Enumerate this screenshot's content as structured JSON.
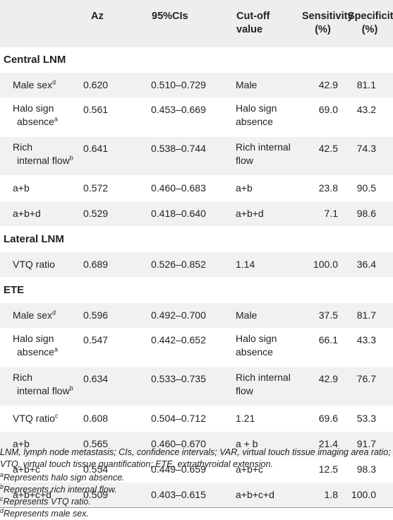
{
  "headers": {
    "variable": "",
    "az": "Az",
    "ci": "95%CIs",
    "cutoff_line1": "Cut-off",
    "cutoff_line2": "value",
    "sens_line1": "Sensitivity",
    "sens_line2": "(%)",
    "spec_line1": "Specificity",
    "spec_line2": "(%)"
  },
  "sections": [
    {
      "title": "Central LNM",
      "rows": [
        {
          "var1": "Male sex",
          "sup": "d",
          "var2": "",
          "az": "0.620",
          "ci": "0.510–0.729",
          "cut1": "Male",
          "cut2": "",
          "sens": "42.9",
          "spec": "81.1"
        },
        {
          "var1": "Halo sign",
          "sup": "a",
          "var2": "absence",
          "az": "0.561",
          "ci": "0.453–0.669",
          "cut1": "Halo sign",
          "cut2": "absence",
          "sens": "69.0",
          "spec": "43.2"
        },
        {
          "var1": "Rich",
          "sup": "b",
          "var2": "internal flow",
          "az": "0.641",
          "ci": "0.538–0.744",
          "cut1": "Rich internal",
          "cut2": "flow",
          "sens": "42.5",
          "spec": "74.3"
        },
        {
          "var1": "a+b",
          "sup": "",
          "var2": "",
          "az": "0.572",
          "ci": "0.460–0.683",
          "cut1": "a+b",
          "cut2": "",
          "sens": "23.8",
          "spec": "90.5"
        },
        {
          "var1": "a+b+d",
          "sup": "",
          "var2": "",
          "az": "0.529",
          "ci": "0.418–0.640",
          "cut1": "a+b+d",
          "cut2": "",
          "sens": "7.1",
          "spec": "98.6"
        }
      ]
    },
    {
      "title": "Lateral LNM",
      "rows": [
        {
          "var1": "VTQ ratio",
          "sup": "",
          "var2": "",
          "az": "0.689",
          "ci": "0.526–0.852",
          "cut1": "1.14",
          "cut2": "",
          "sens": "100.0",
          "spec": "36.4"
        }
      ]
    },
    {
      "title": "ETE",
      "rows": [
        {
          "var1": "Male sex",
          "sup": "d",
          "var2": "",
          "az": "0.596",
          "ci": "0.492–0.700",
          "cut1": "Male",
          "cut2": "",
          "sens": "37.5",
          "spec": "81.7"
        },
        {
          "var1": "Halo sign",
          "sup": "a",
          "var2": "absence",
          "az": "0.547",
          "ci": "0.442–0.652",
          "cut1": "Halo sign",
          "cut2": "absence",
          "sens": "66.1",
          "spec": "43.3"
        },
        {
          "var1": "Rich",
          "sup": "b",
          "var2": "internal flow",
          "az": "0.634",
          "ci": "0.533–0.735",
          "cut1": "Rich internal",
          "cut2": "flow",
          "sens": "42.9",
          "spec": "76.7"
        },
        {
          "var1": "VTQ ratio",
          "sup": "c",
          "var2": "",
          "az": "0.608",
          "ci": "0.504–0.712",
          "cut1": "1.21",
          "cut2": "",
          "sens": "69.6",
          "spec": "53.3"
        },
        {
          "var1": "a+b",
          "sup": "",
          "var2": "",
          "az": "0.565",
          "ci": "0.460–0.670",
          "cut1": "a + b",
          "cut2": "",
          "sens": "21.4",
          "spec": "91.7"
        },
        {
          "var1": "a+b+c",
          "sup": "",
          "var2": "",
          "az": "0.554",
          "ci": "0.449–0.659",
          "cut1": "a+b+c",
          "cut2": "",
          "sens": "12.5",
          "spec": "98.3"
        },
        {
          "var1": "a+b+c+d",
          "sup": "",
          "var2": "",
          "az": "0.509",
          "ci": "0.403–0.615",
          "cut1": "a+b+c+d",
          "cut2": "",
          "sens": "1.8",
          "spec": "100.0"
        }
      ]
    }
  ],
  "footnotes": {
    "abbreviations": "LNM, lymph node metastasis; CIs, confidence intervals; VAR, virtual touch tissue imaging area ratio; VTQ, virtual touch tissue quantification; ETE, extrathyroidal extension.",
    "notes": [
      {
        "mark": "a",
        "text": "Represents halo sign absence."
      },
      {
        "mark": "b",
        "text": "Represents rich internal flow."
      },
      {
        "mark": "c",
        "text": "Represents VTQ ratio."
      },
      {
        "mark": "d",
        "text": "Represents male sex."
      }
    ]
  }
}
